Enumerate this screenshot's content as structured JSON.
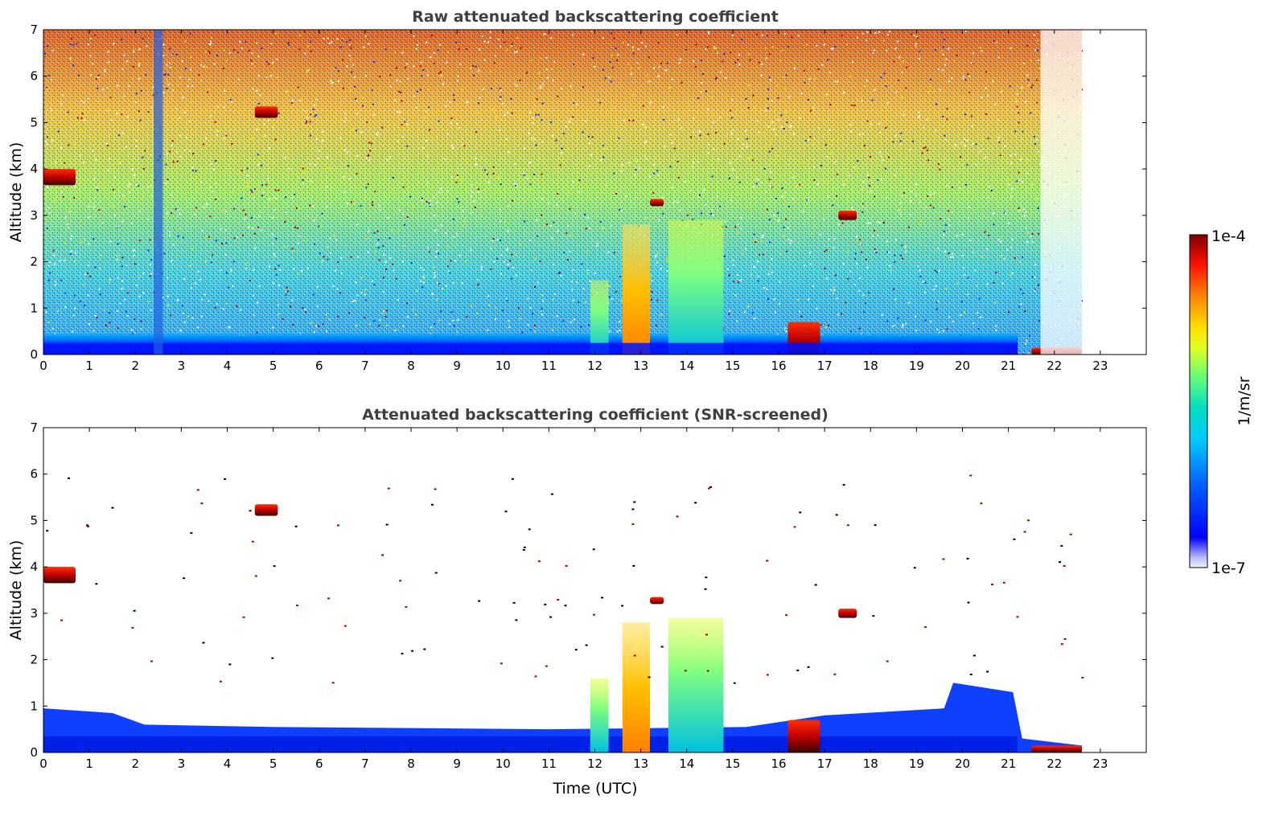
{
  "chart_data": [
    {
      "type": "heatmap",
      "title": "Raw attenuated backscattering coefficient",
      "xlabel": "",
      "ylabel": "Altitude (km)",
      "xlim": [
        0,
        24
      ],
      "ylim": [
        0,
        7
      ],
      "xticks": [
        "0",
        "1",
        "2",
        "3",
        "4",
        "5",
        "6",
        "7",
        "8",
        "9",
        "10",
        "11",
        "12",
        "13",
        "14",
        "15",
        "16",
        "17",
        "18",
        "19",
        "20",
        "21",
        "22",
        "23"
      ],
      "yticks": [
        "0",
        "1",
        "2",
        "3",
        "4",
        "5",
        "6",
        "7"
      ],
      "data_end_time": 22.6,
      "features": [
        {
          "kind": "boundary-layer",
          "t0": 0,
          "t1": 21.2,
          "z0": 0,
          "z1": 0.5,
          "level": 0.35
        },
        {
          "kind": "aerosol-plume",
          "t0": 11.9,
          "t1": 12.3,
          "z0": 0,
          "z1": 1.6,
          "level": 0.55
        },
        {
          "kind": "aerosol-plume",
          "t0": 12.6,
          "t1": 13.2,
          "z0": 0,
          "z1": 2.8,
          "level": 0.75
        },
        {
          "kind": "aerosol-plume",
          "t0": 13.6,
          "t1": 14.8,
          "z0": 0,
          "z1": 2.9,
          "level": 0.6
        },
        {
          "kind": "cloud",
          "t0": 16.2,
          "t1": 16.9,
          "z0": 0,
          "z1": 0.7,
          "level": 0.95
        },
        {
          "kind": "cloud",
          "t0": 4.6,
          "t1": 5.1,
          "z0": 5.1,
          "z1": 5.35,
          "level": 0.95
        },
        {
          "kind": "cloud",
          "t0": 0,
          "t1": 0.7,
          "z0": 3.65,
          "z1": 4.0,
          "level": 0.95
        },
        {
          "kind": "cloud",
          "t0": 13.2,
          "t1": 13.5,
          "z0": 3.2,
          "z1": 3.35,
          "level": 0.95
        },
        {
          "kind": "cloud",
          "t0": 17.3,
          "t1": 17.7,
          "z0": 2.9,
          "z1": 3.1,
          "level": 0.95
        },
        {
          "kind": "cloud",
          "t0": 21.5,
          "t1": 22.6,
          "z0": 0,
          "z1": 0.15,
          "level": 0.95
        }
      ]
    },
    {
      "type": "heatmap",
      "title": "Attenuated backscattering coefficient (SNR-screened)",
      "xlabel": "Time (UTC)",
      "ylabel": "Altitude (km)",
      "xlim": [
        0,
        24
      ],
      "ylim": [
        0,
        7
      ],
      "xticks": [
        "0",
        "1",
        "2",
        "3",
        "4",
        "5",
        "6",
        "7",
        "8",
        "9",
        "10",
        "11",
        "12",
        "13",
        "14",
        "15",
        "16",
        "17",
        "18",
        "19",
        "20",
        "21",
        "22",
        "23"
      ],
      "yticks": [
        "0",
        "1",
        "2",
        "3",
        "4",
        "5",
        "6",
        "7"
      ],
      "data_end_time": 22.6
    }
  ],
  "colorbar": {
    "label": "1/m/sr",
    "max_label": "1e-4",
    "min_label": "1e-7",
    "colors": [
      "#eef0ff",
      "#0000ff",
      "#00a0ff",
      "#00e0e0",
      "#60ff90",
      "#ffff00",
      "#ff8000",
      "#ff0000",
      "#800000"
    ]
  }
}
